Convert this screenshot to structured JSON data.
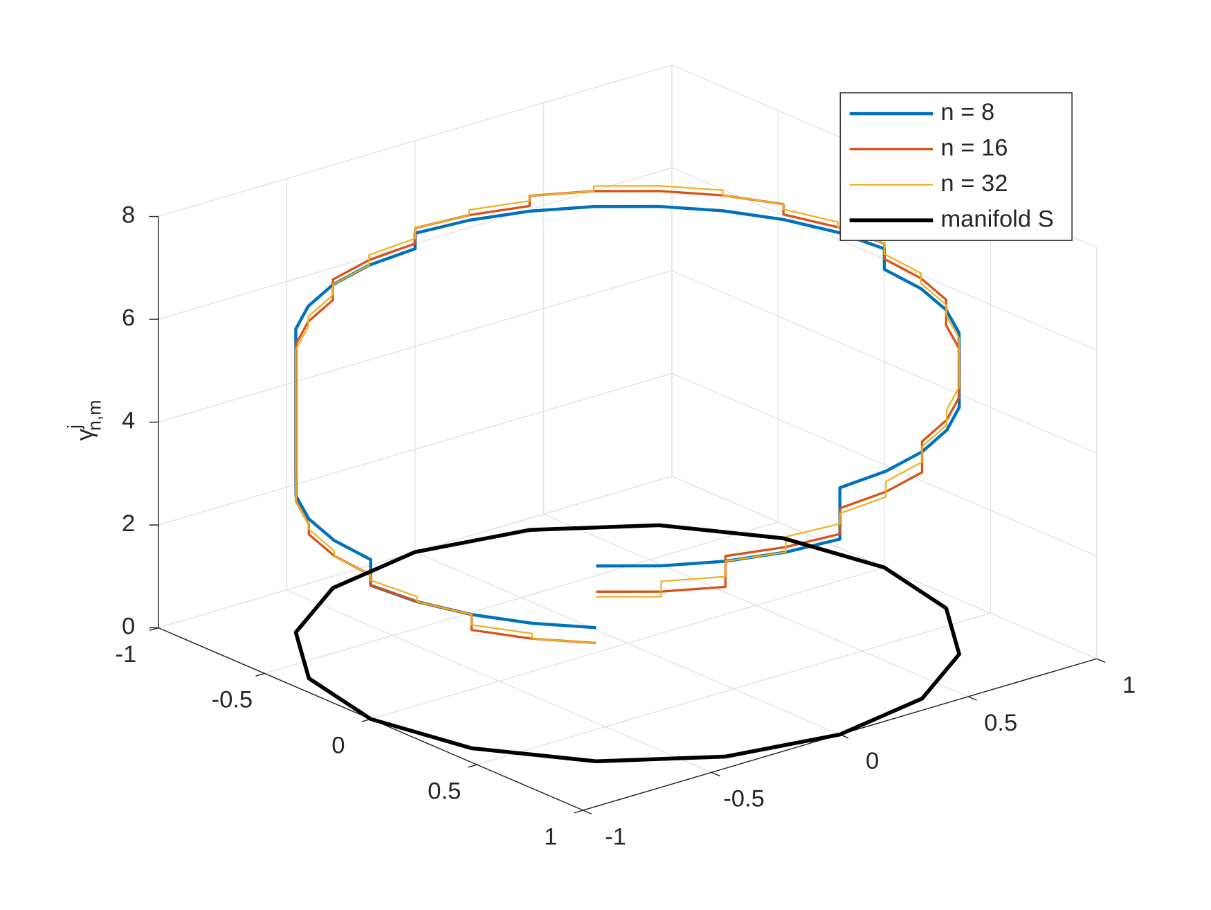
{
  "chart_data": {
    "type": "line3d",
    "zlabel": {
      "base": "γ",
      "sup": "j",
      "sub": "n,m"
    },
    "xlim": [
      -1,
      1
    ],
    "ylim": [
      -1,
      1
    ],
    "zlim": [
      0,
      8
    ],
    "xticks": [
      -1,
      -0.5,
      0,
      0.5,
      1
    ],
    "yticks": [
      -1,
      -0.5,
      0,
      0.5,
      1
    ],
    "zticks": [
      0,
      2,
      4,
      6,
      8
    ],
    "grid": true,
    "legend": "northeast",
    "series": [
      {
        "name": "n = 8",
        "color": "#0072BD",
        "width": 4,
        "x": [
          0.707,
          0.831,
          0.924,
          0.981,
          1,
          1,
          0.981,
          0.924,
          0.831,
          0.707,
          0.707,
          0.556,
          0.383,
          0.195,
          0,
          0,
          -0.195,
          -0.383,
          -0.556,
          -0.707,
          -0.707,
          -0.831,
          -0.924,
          -0.981,
          -1,
          -1,
          -0.981,
          -0.924,
          -0.831,
          -0.707,
          -0.707,
          -0.556,
          -0.383,
          -0.195,
          0,
          0,
          0.195,
          0.383,
          0.556,
          0.707
        ],
        "y": [
          -0.707,
          -0.556,
          -0.383,
          -0.195,
          0,
          0,
          0.195,
          0.383,
          0.556,
          0.707,
          0.707,
          0.831,
          0.924,
          0.981,
          1,
          1,
          0.981,
          0.924,
          0.831,
          0.707,
          0.707,
          0.556,
          0.383,
          0.195,
          0,
          0,
          -0.195,
          -0.383,
          -0.556,
          -0.707,
          -0.707,
          -0.831,
          -0.924,
          -0.981,
          -1,
          -1,
          -0.981,
          -0.924,
          -0.831,
          -0.707
        ],
        "z": [
          3.8,
          3.8,
          3.8,
          3.8,
          3.8,
          4.8,
          4.8,
          4.8,
          4.8,
          4.8,
          5.8,
          5.8,
          5.8,
          5.8,
          5.8,
          6.2,
          6.2,
          6.2,
          6.2,
          6.2,
          6.2,
          6.2,
          6.2,
          6.2,
          6.2,
          5.9,
          5.9,
          5.9,
          5.9,
          5.9,
          3.1,
          3.1,
          3.1,
          3.1,
          3.1,
          2.6,
          2.6,
          2.6,
          2.6,
          2.6
        ]
      },
      {
        "name": "n = 16",
        "color": "#D95319",
        "width": 3,
        "x": [
          0.707,
          0.831,
          0.924,
          0.924,
          0.981,
          1,
          1,
          0.981,
          0.924,
          0.924,
          0.831,
          0.707,
          0.707,
          0.556,
          0.383,
          0.383,
          0.195,
          0,
          0,
          -0.195,
          -0.383,
          -0.383,
          -0.556,
          -0.707,
          -0.707,
          -0.831,
          -0.924,
          -0.924,
          -0.981,
          -1,
          -1,
          -0.981,
          -0.924,
          -0.924,
          -0.831,
          -0.707,
          -0.707,
          -0.556,
          -0.383,
          -0.383,
          -0.195,
          0,
          0,
          0.195,
          0.383,
          0.383,
          0.556,
          0.707
        ],
        "y": [
          -0.707,
          -0.556,
          -0.383,
          -0.383,
          -0.195,
          0,
          0,
          0.195,
          0.383,
          0.383,
          0.556,
          0.707,
          0.707,
          0.831,
          0.924,
          0.924,
          0.981,
          1,
          1,
          0.981,
          0.924,
          0.924,
          0.831,
          0.707,
          0.707,
          0.556,
          0.383,
          0.383,
          0.195,
          0,
          0,
          -0.195,
          -0.383,
          -0.383,
          -0.556,
          -0.707,
          -0.707,
          -0.831,
          -0.924,
          -0.924,
          -0.981,
          -1,
          -1,
          -0.981,
          -0.924,
          -0.924,
          -0.831,
          -0.707
        ],
        "z": [
          3.3,
          3.3,
          3.3,
          3.9,
          3.9,
          3.9,
          4.4,
          4.4,
          4.4,
          5.0,
          5.0,
          5.0,
          5.5,
          5.5,
          5.5,
          6.0,
          6.0,
          6.0,
          6.3,
          6.3,
          6.3,
          6.5,
          6.5,
          6.5,
          6.5,
          6.5,
          6.5,
          6.3,
          6.3,
          6.3,
          6.0,
          6.0,
          6.0,
          5.6,
          5.6,
          5.6,
          3.0,
          3.0,
          3.0,
          2.8,
          2.8,
          2.8,
          2.6,
          2.6,
          2.6,
          2.3,
          2.3,
          2.3
        ]
      },
      {
        "name": "n = 32",
        "color": "#EDB120",
        "width": 2,
        "x": [
          0.707,
          0.831,
          0.831,
          0.924,
          0.924,
          0.981,
          0.981,
          1,
          1,
          0.981,
          0.981,
          0.924,
          0.924,
          0.831,
          0.831,
          0.707,
          0.707,
          0.556,
          0.556,
          0.383,
          0.383,
          0.195,
          0.195,
          0,
          0,
          -0.195,
          -0.195,
          -0.383,
          -0.383,
          -0.556,
          -0.556,
          -0.707,
          -0.707,
          -0.831,
          -0.831,
          -0.924,
          -0.924,
          -0.981,
          -0.981,
          -1,
          -1,
          -0.981,
          -0.981,
          -0.924,
          -0.924,
          -0.831,
          -0.831,
          -0.707,
          -0.707,
          -0.556,
          -0.556,
          -0.383,
          -0.383,
          -0.195,
          -0.195,
          0,
          0,
          0.195,
          0.195,
          0.383,
          0.383,
          0.556,
          0.556,
          0.707
        ],
        "y": [
          -0.707,
          -0.556,
          -0.556,
          -0.383,
          -0.383,
          -0.195,
          -0.195,
          0,
          0,
          0.195,
          0.195,
          0.383,
          0.383,
          0.556,
          0.556,
          0.707,
          0.707,
          0.831,
          0.831,
          0.924,
          0.924,
          0.981,
          0.981,
          1,
          1,
          0.981,
          0.981,
          0.924,
          0.924,
          0.831,
          0.831,
          0.707,
          0.707,
          0.556,
          0.556,
          0.383,
          0.383,
          0.195,
          0.195,
          0,
          0,
          -0.195,
          -0.195,
          -0.383,
          -0.383,
          -0.556,
          -0.556,
          -0.707,
          -0.707,
          -0.831,
          -0.831,
          -0.924,
          -0.924,
          -0.981,
          -0.981,
          -1,
          -1,
          -0.981,
          -0.981,
          -0.924,
          -0.924,
          -0.831,
          -0.831,
          -0.707
        ],
        "z": [
          3.2,
          3.2,
          3.5,
          3.5,
          3.8,
          3.8,
          4.1,
          4.1,
          4.3,
          4.3,
          4.6,
          4.6,
          4.9,
          4.9,
          5.2,
          5.2,
          5.4,
          5.4,
          5.7,
          5.7,
          5.9,
          5.9,
          6.1,
          6.1,
          6.3,
          6.3,
          6.4,
          6.4,
          6.5,
          6.5,
          6.6,
          6.6,
          6.6,
          6.6,
          6.5,
          6.5,
          6.4,
          6.4,
          6.3,
          6.3,
          6.1,
          6.1,
          5.9,
          5.9,
          5.7,
          5.7,
          5.5,
          5.5,
          3.1,
          3.1,
          3.0,
          3.0,
          2.9,
          2.9,
          2.8,
          2.8,
          2.7,
          2.7,
          2.6,
          2.6,
          2.4,
          2.4,
          2.3,
          2.3
        ]
      },
      {
        "name": "manifold S",
        "color": "#000000",
        "width": 5,
        "x": [
          0.707,
          0.924,
          1,
          0.924,
          0.707,
          0.383,
          0,
          -0.383,
          -0.707,
          -0.924,
          -1,
          -0.924,
          -0.707,
          -0.383,
          0,
          0.383,
          0.707
        ],
        "y": [
          -0.707,
          -0.383,
          0,
          0.383,
          0.707,
          0.924,
          1,
          0.924,
          0.707,
          0.383,
          0,
          -0.383,
          -0.707,
          -0.924,
          -1,
          -0.924,
          -0.707
        ],
        "z": [
          0,
          0,
          0,
          0,
          0,
          0,
          0,
          0,
          0,
          0,
          0,
          0,
          0,
          0,
          0,
          0,
          0
        ]
      }
    ]
  }
}
